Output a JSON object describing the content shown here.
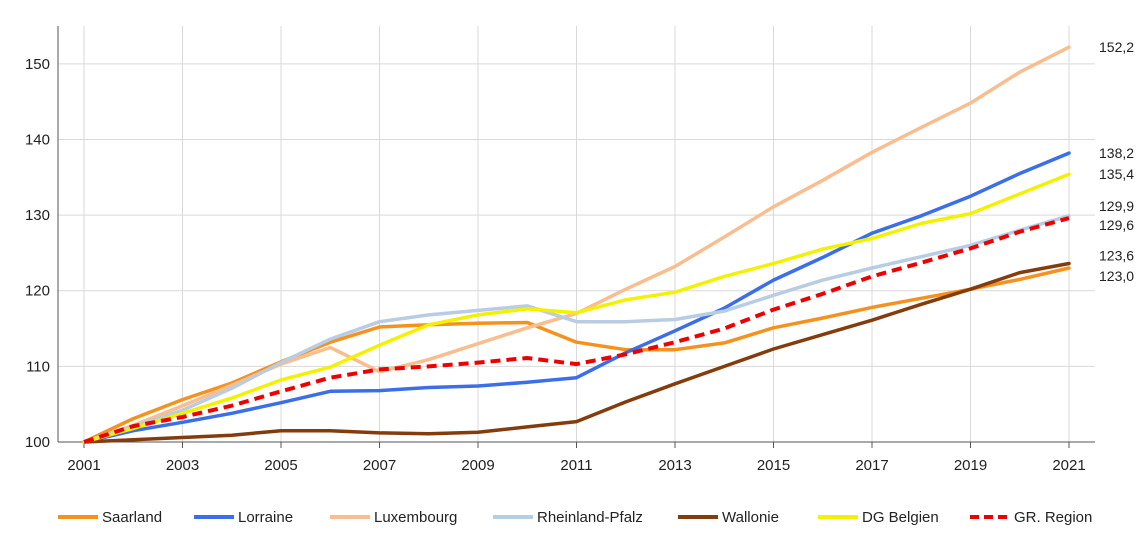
{
  "chart_data": {
    "type": "line",
    "title": "",
    "xlabel": "",
    "ylabel": "",
    "x": [
      2001,
      2002,
      2003,
      2004,
      2005,
      2006,
      2007,
      2008,
      2009,
      2010,
      2011,
      2012,
      2013,
      2014,
      2015,
      2016,
      2017,
      2018,
      2019,
      2020,
      2021
    ],
    "x_ticks": [
      "2001",
      "2003",
      "2005",
      "2007",
      "2009",
      "2011",
      "2013",
      "2015",
      "2017",
      "2019",
      "2021"
    ],
    "y_ticks": [
      "100",
      "110",
      "120",
      "130",
      "140",
      "150"
    ],
    "ylim": [
      100,
      155
    ],
    "xlim": [
      2001,
      2021
    ],
    "grid": true,
    "legend_position": "bottom",
    "series": [
      {
        "name": "Saarland",
        "color": "#F5921E",
        "dash": false,
        "values": [
          100,
          103.1,
          105.6,
          107.8,
          110.6,
          113.2,
          115.2,
          115.5,
          115.7,
          115.8,
          113.2,
          112.2,
          112.2,
          113.1,
          115.1,
          116.4,
          117.8,
          119.0,
          120.2,
          121.5,
          123.0
        ],
        "end_label": "123,0"
      },
      {
        "name": "Lorraine",
        "color": "#3B6EEA",
        "dash": false,
        "values": [
          100,
          101.5,
          102.6,
          103.8,
          105.2,
          106.7,
          106.8,
          107.2,
          107.4,
          107.9,
          108.5,
          111.8,
          114.7,
          117.7,
          121.4,
          124.4,
          127.6,
          129.9,
          132.5,
          135.5,
          138.2
        ],
        "end_label": "138,2"
      },
      {
        "name": "Luxembourg",
        "color": "#F9BE8F",
        "dash": false,
        "values": [
          100,
          102.2,
          104.8,
          107.5,
          110.3,
          112.5,
          109.3,
          110.9,
          113.0,
          115.1,
          117.0,
          120.2,
          123.2,
          127.1,
          131.1,
          134.6,
          138.3,
          141.6,
          144.8,
          148.9,
          152.2
        ],
        "end_label": "152,2"
      },
      {
        "name": "Rheinland-Pfalz",
        "color": "#B8CCE4",
        "dash": false,
        "values": [
          100,
          102.0,
          104.2,
          107.1,
          110.5,
          113.6,
          115.9,
          116.8,
          117.4,
          118.0,
          115.9,
          115.9,
          116.2,
          117.3,
          119.4,
          121.4,
          123.0,
          124.5,
          126.0,
          128.0,
          129.9
        ],
        "end_label": "129,9"
      },
      {
        "name": "Wallonie",
        "color": "#843C0C",
        "dash": false,
        "values": [
          100,
          100.3,
          100.6,
          100.9,
          101.5,
          101.5,
          101.2,
          101.1,
          101.3,
          102.0,
          102.7,
          105.3,
          107.7,
          110.0,
          112.3,
          114.2,
          116.1,
          118.2,
          120.2,
          122.4,
          123.6
        ],
        "end_label": "123,6"
      },
      {
        "name": "DG Belgien",
        "color": "#F2F200",
        "dash": false,
        "values": [
          100,
          101.8,
          103.8,
          105.8,
          108.2,
          109.9,
          112.8,
          115.5,
          116.8,
          117.6,
          117.1,
          118.8,
          119.8,
          121.9,
          123.6,
          125.5,
          126.9,
          128.9,
          130.2,
          132.8,
          135.4
        ],
        "end_label": "135,4"
      },
      {
        "name": "GR. Region",
        "color": "#EE0000",
        "dash": true,
        "values": [
          100,
          102.1,
          103.3,
          104.8,
          106.7,
          108.5,
          109.6,
          110.0,
          110.5,
          111.1,
          110.3,
          111.6,
          113.2,
          115.0,
          117.5,
          119.6,
          121.9,
          123.7,
          125.6,
          127.8,
          129.6
        ],
        "end_label": "129,6"
      }
    ]
  }
}
